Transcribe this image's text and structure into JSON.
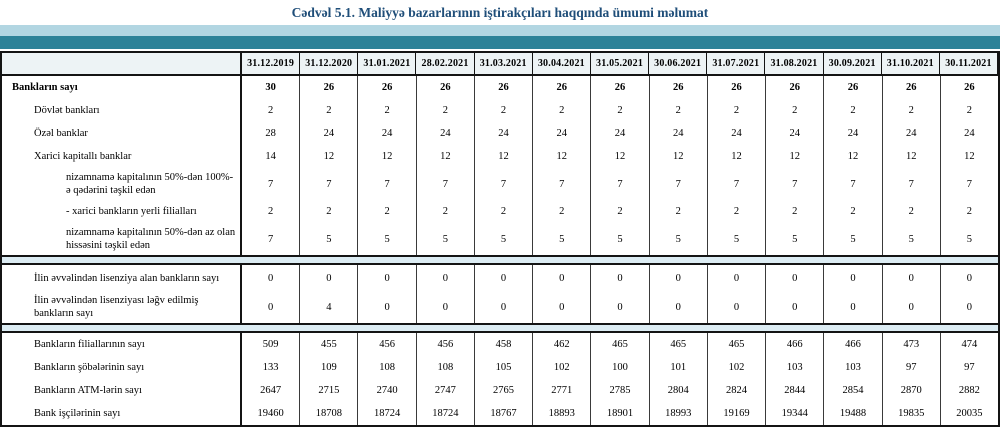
{
  "title": "Cədvəl 5.1. Maliyyə bazarlarının iştirakçıları haqqında ümumi məlumat",
  "colors": {
    "title_text": "#1f4e79",
    "band_light": "#b2d6e2",
    "band_teal": "#2d8298",
    "header_bg": "#edf3f5",
    "spacer_bg": "#dcecf3"
  },
  "table": {
    "columns": [
      "31.12.2019",
      "31.12.2020",
      "31.01.2021",
      "28.02.2021",
      "31.03.2021",
      "30.04.2021",
      "31.05.2021",
      "30.06.2021",
      "31.07.2021",
      "31.08.2021",
      "30.09.2021",
      "31.10.2021",
      "30.11.2021"
    ],
    "sections": [
      {
        "name": "banks",
        "rows": [
          {
            "label": "Bankların sayı",
            "indent": 0,
            "bold": true,
            "values": [
              "30",
              "26",
              "26",
              "26",
              "26",
              "26",
              "26",
              "26",
              "26",
              "26",
              "26",
              "26",
              "26"
            ]
          },
          {
            "label": "Dövlət bankları",
            "indent": 1,
            "bold": false,
            "values": [
              "2",
              "2",
              "2",
              "2",
              "2",
              "2",
              "2",
              "2",
              "2",
              "2",
              "2",
              "2",
              "2"
            ]
          },
          {
            "label": "Özəl banklar",
            "indent": 1,
            "bold": false,
            "values": [
              "28",
              "24",
              "24",
              "24",
              "24",
              "24",
              "24",
              "24",
              "24",
              "24",
              "24",
              "24",
              "24"
            ]
          },
          {
            "label": "Xarici kapitallı banklar",
            "indent": 1,
            "bold": false,
            "values": [
              "14",
              "12",
              "12",
              "12",
              "12",
              "12",
              "12",
              "12",
              "12",
              "12",
              "12",
              "12",
              "12"
            ]
          },
          {
            "label": "nizamnamə kapitalının 50%-dən 100%-ə qədərini təşkil edən",
            "indent": 2,
            "bold": false,
            "values": [
              "7",
              "7",
              "7",
              "7",
              "7",
              "7",
              "7",
              "7",
              "7",
              "7",
              "7",
              "7",
              "7"
            ]
          },
          {
            "label": "-  xarici bankların yerli filialları",
            "indent": 2,
            "bold": false,
            "values": [
              "2",
              "2",
              "2",
              "2",
              "2",
              "2",
              "2",
              "2",
              "2",
              "2",
              "2",
              "2",
              "2"
            ]
          },
          {
            "label": "nizamnamə kapitalının 50%-dən az olan hissəsini  təşkil edən",
            "indent": 2,
            "bold": false,
            "values": [
              "7",
              "5",
              "5",
              "5",
              "5",
              "5",
              "5",
              "5",
              "5",
              "5",
              "5",
              "5",
              "5"
            ]
          }
        ]
      },
      {
        "name": "licenses",
        "rows": [
          {
            "label": "İlin əvvəlindən lisenziya alan bankların sayı",
            "indent": 1,
            "bold": false,
            "values": [
              "0",
              "0",
              "0",
              "0",
              "0",
              "0",
              "0",
              "0",
              "0",
              "0",
              "0",
              "0",
              "0"
            ]
          },
          {
            "label": "İlin əvvəlindən lisenziyası ləğv edilmiş bankların sayı",
            "indent": 1,
            "bold": false,
            "values": [
              "0",
              "4",
              "0",
              "0",
              "0",
              "0",
              "0",
              "0",
              "0",
              "0",
              "0",
              "0",
              "0"
            ]
          }
        ]
      },
      {
        "name": "network",
        "rows": [
          {
            "label": "Bankların filiallarının sayı",
            "indent": 1,
            "bold": false,
            "values": [
              "509",
              "455",
              "456",
              "456",
              "458",
              "462",
              "465",
              "465",
              "465",
              "466",
              "466",
              "473",
              "474"
            ]
          },
          {
            "label": "Bankların şöbələrinin sayı",
            "indent": 1,
            "bold": false,
            "values": [
              "133",
              "109",
              "108",
              "108",
              "105",
              "102",
              "100",
              "101",
              "102",
              "103",
              "103",
              "97",
              "97"
            ]
          },
          {
            "label": "Bankların ATM-lərin sayı",
            "indent": 1,
            "bold": false,
            "values": [
              "2647",
              "2715",
              "2740",
              "2747",
              "2765",
              "2771",
              "2785",
              "2804",
              "2824",
              "2844",
              "2854",
              "2870",
              "2882"
            ]
          },
          {
            "label": "Bank işçilərinin sayı",
            "indent": 1,
            "bold": false,
            "values": [
              "19460",
              "18708",
              "18724",
              "18724",
              "18767",
              "18893",
              "18901",
              "18993",
              "19169",
              "19344",
              "19488",
              "19835",
              "20035"
            ]
          }
        ]
      }
    ]
  }
}
